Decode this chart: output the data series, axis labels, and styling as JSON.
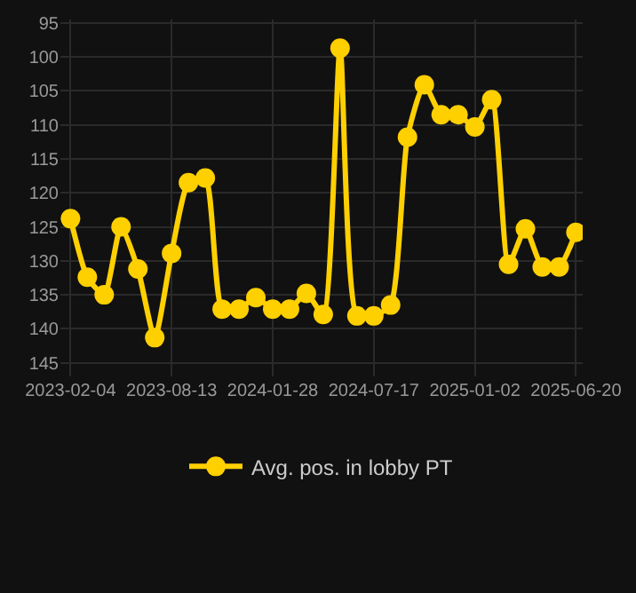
{
  "chart_data": {
    "type": "line",
    "categories": [
      "2023-02-04",
      null,
      null,
      null,
      null,
      null,
      "2023-08-13",
      null,
      null,
      null,
      null,
      null,
      "2024-01-28",
      null,
      null,
      null,
      null,
      null,
      "2024-07-17",
      null,
      null,
      null,
      null,
      null,
      "2025-01-02",
      null,
      null,
      null,
      null,
      null,
      "2025-06-20"
    ],
    "series": [
      {
        "name": "Avg. pos. in lobby PT",
        "color": "#ffd000",
        "values": [
          123.8,
          132.4,
          135.0,
          125.0,
          131.2,
          141.3,
          128.9,
          118.5,
          117.8,
          137.1,
          137.1,
          135.4,
          137.1,
          137.1,
          134.8,
          137.9,
          98.7,
          138.1,
          138.1,
          136.5,
          111.8,
          104.1,
          108.5,
          108.5,
          110.3,
          106.3,
          130.5,
          125.3,
          130.9,
          130.9,
          125.8
        ]
      }
    ],
    "ylim": [
      147,
      94.5
    ],
    "yticks": [
      95,
      100,
      105,
      110,
      115,
      120,
      125,
      130,
      135,
      140,
      145
    ],
    "grid": true,
    "legend": "bottom",
    "marker": "circle",
    "line_style": "solid"
  }
}
